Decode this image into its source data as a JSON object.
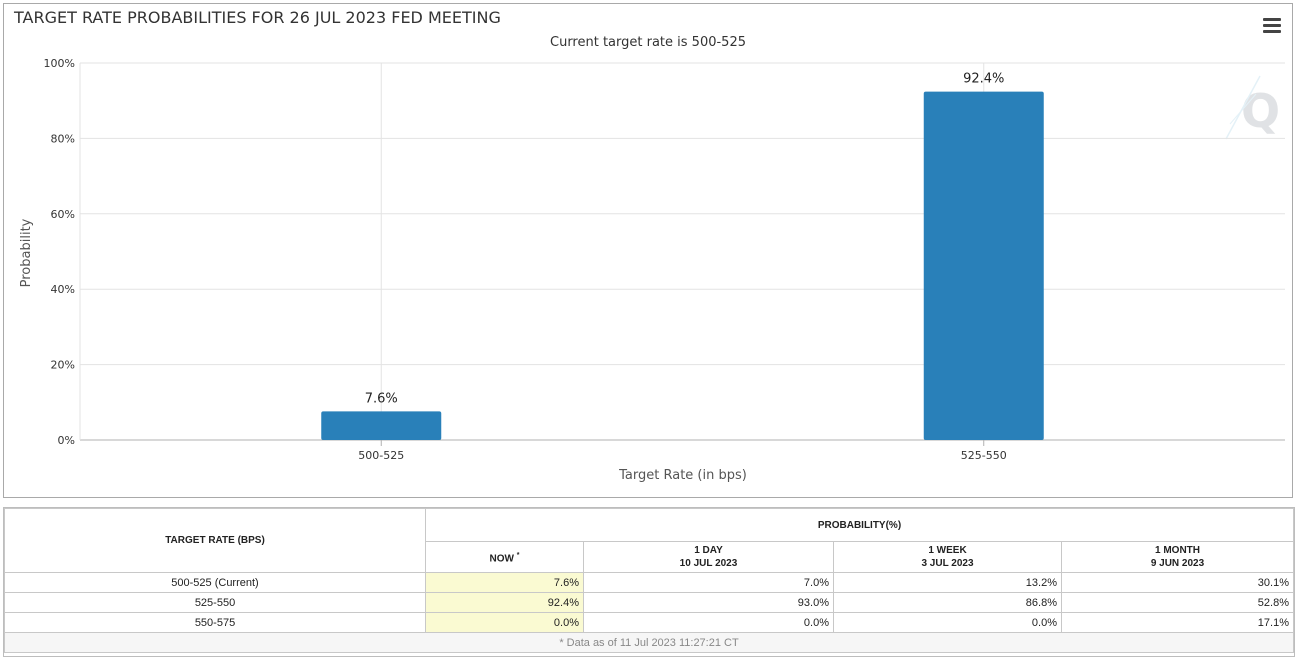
{
  "chart_data": {
    "type": "bar",
    "title": "TARGET RATE PROBABILITIES FOR 26 JUL 2023 FED MEETING",
    "subtitle": "Current target rate is 500-525",
    "categories": [
      "500-525",
      "525-550"
    ],
    "values": [
      7.6,
      92.4
    ],
    "data_labels": [
      "7.6%",
      "92.4%"
    ],
    "xlabel": "Target Rate (in bps)",
    "ylabel": "Probability",
    "ylim": [
      0,
      100
    ],
    "yticks": [
      "0%",
      "20%",
      "40%",
      "60%",
      "80%",
      "100%"
    ],
    "ytick_values": [
      0,
      20,
      40,
      60,
      80,
      100
    ],
    "grid": true,
    "legend": "none",
    "bar_color": "#2980b9"
  },
  "menu_icon": "hamburger-menu-icon",
  "watermark_icon": "q-logo-icon",
  "table": {
    "col_target": "TARGET RATE (BPS)",
    "col_prob": "PROBABILITY(%)",
    "now_label": "NOW",
    "now_marker": "*",
    "subcols": [
      {
        "l1": "1 DAY",
        "l2": "10 JUL 2023"
      },
      {
        "l1": "1 WEEK",
        "l2": "3 JUL 2023"
      },
      {
        "l1": "1 MONTH",
        "l2": "9 JUN 2023"
      }
    ],
    "rows": [
      {
        "rate": "500-525 (Current)",
        "now": "7.6%",
        "day": "7.0%",
        "week": "13.2%",
        "month": "30.1%"
      },
      {
        "rate": "525-550",
        "now": "92.4%",
        "day": "93.0%",
        "week": "86.8%",
        "month": "52.8%"
      },
      {
        "rate": "550-575",
        "now": "0.0%",
        "day": "0.0%",
        "week": "0.0%",
        "month": "17.1%"
      }
    ],
    "note": "* Data as of 11 Jul 2023 11:27:21 CT",
    "now_bg": "#fafad2"
  }
}
